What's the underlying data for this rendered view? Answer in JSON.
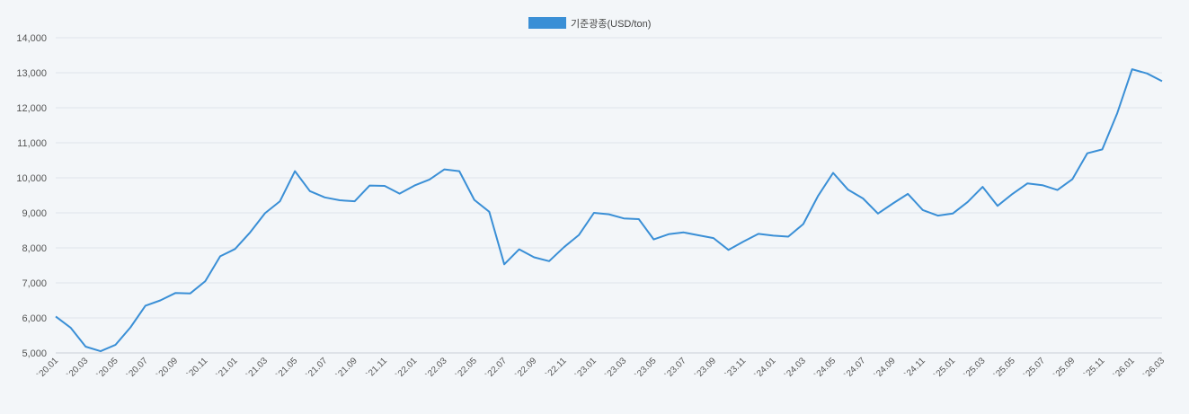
{
  "chart_data": {
    "type": "line",
    "title": "",
    "xlabel": "",
    "ylabel": "",
    "ylim": [
      5000,
      14000
    ],
    "y_ticks": [
      "5,000",
      "6,000",
      "7,000",
      "8,000",
      "9,000",
      "10,000",
      "11,000",
      "12,000",
      "13,000",
      "14,000"
    ],
    "y_tick_values": [
      5000,
      6000,
      7000,
      8000,
      9000,
      10000,
      11000,
      12000,
      13000,
      14000
    ],
    "grid": true,
    "legend_position": "top-center",
    "x_tick_labels": [
      "`20.01",
      "`20.03",
      "`20.05",
      "`20.07",
      "`20.09",
      "`20.11",
      "`21.01",
      "`21.03",
      "`21.05",
      "`21.07",
      "`21.09",
      "`21.11",
      "`22.01",
      "`22.03",
      "`22.05",
      "`22.07",
      "`22.09",
      "`22.11",
      "`23.01",
      "`23.03",
      "`23.05",
      "`23.07",
      "`23.09",
      "`23.11",
      "`24.01",
      "`24.03",
      "`24.05",
      "`24.07",
      "`24.09",
      "`24.11",
      "`25.01",
      "`25.03",
      "`25.05",
      "`25.07",
      "`25.09",
      "`25.11",
      "`26.01",
      "`26.03"
    ],
    "x": [
      "`20.01",
      "`20.02",
      "`20.03",
      "`20.04",
      "`20.05",
      "`20.06",
      "`20.07",
      "`20.08",
      "`20.09",
      "`20.10",
      "`20.11",
      "`20.12",
      "`21.01",
      "`21.02",
      "`21.03",
      "`21.04",
      "`21.05",
      "`21.06",
      "`21.07",
      "`21.08",
      "`21.09",
      "`21.10",
      "`21.11",
      "`21.12",
      "`22.01",
      "`22.02",
      "`22.03",
      "`22.04",
      "`22.05",
      "`22.06",
      "`22.07",
      "`22.08",
      "`22.09",
      "`22.10",
      "`22.11",
      "`22.12",
      "`23.01",
      "`23.02",
      "`23.03",
      "`23.04",
      "`23.05",
      "`23.06",
      "`23.07",
      "`23.08",
      "`23.09",
      "`23.10",
      "`23.11",
      "`23.12",
      "`24.01",
      "`24.02",
      "`24.03",
      "`24.04",
      "`24.05",
      "`24.06",
      "`24.07",
      "`24.08",
      "`24.09",
      "`24.10",
      "`24.11",
      "`24.12",
      "`25.01",
      "`25.02",
      "`25.03",
      "`25.04",
      "`25.05",
      "`25.06",
      "`25.07",
      "`25.08",
      "`25.09",
      "`25.10",
      "`25.11",
      "`25.12",
      "`26.01",
      "`26.02",
      "`26.03"
    ],
    "series": [
      {
        "name": "기준광종(USD/ton)",
        "color": "#3a8fd6",
        "values": [
          6040,
          5720,
          5180,
          5050,
          5230,
          5730,
          6350,
          6500,
          6710,
          6700,
          7050,
          7760,
          7970,
          8440,
          8990,
          9330,
          10190,
          9620,
          9440,
          9360,
          9330,
          9780,
          9770,
          9550,
          9780,
          9950,
          10240,
          10190,
          9370,
          9030,
          7530,
          7960,
          7730,
          7620,
          8020,
          8370,
          9000,
          8960,
          8840,
          8820,
          8240,
          8390,
          8440,
          8360,
          8280,
          7940,
          8180,
          8400,
          8350,
          8320,
          8680,
          9490,
          10140,
          9660,
          9410,
          8980,
          9270,
          9540,
          9080,
          8920,
          8980,
          9310,
          9740,
          9200,
          9540,
          9840,
          9790,
          9650,
          9960,
          10700,
          10810,
          11840,
          13100,
          12980,
          12760
        ]
      }
    ]
  }
}
